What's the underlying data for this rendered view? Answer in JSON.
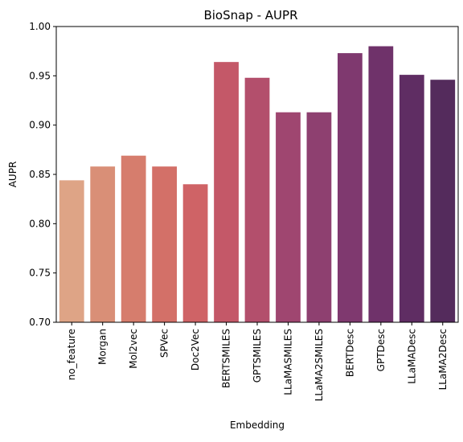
{
  "chart_data": {
    "type": "bar",
    "title": "BioSnap - AUPR",
    "xlabel": "Embedding",
    "ylabel": "AUPR",
    "ylim": [
      0.7,
      1.0
    ],
    "yticks": [
      "0.70",
      "0.75",
      "0.80",
      "0.85",
      "0.90",
      "0.95",
      "1.00"
    ],
    "yticks_values": [
      0.7,
      0.75,
      0.8,
      0.85,
      0.9,
      0.95,
      1.0
    ],
    "grid": false,
    "categories": [
      "no_feature",
      "Morgan",
      "Mol2vec",
      "SPVec",
      "Doc2Vec",
      "BERTSMILES",
      "GPTSMILES",
      "LLaMASMILES",
      "LLaMA2SMILES",
      "BERTDesc",
      "GPTDesc",
      "LLaMADesc",
      "LLaMA2Desc"
    ],
    "values": [
      0.844,
      0.858,
      0.869,
      0.858,
      0.84,
      0.964,
      0.948,
      0.913,
      0.913,
      0.973,
      0.98,
      0.951,
      0.946
    ],
    "colors": [
      "#dea486",
      "#d98f77",
      "#d67d6d",
      "#d37068",
      "#cf6366",
      "#c45868",
      "#b34f6c",
      "#9f4670",
      "#8e4070",
      "#7f396f",
      "#6f326a",
      "#5f2d63",
      "#542b5c"
    ]
  }
}
